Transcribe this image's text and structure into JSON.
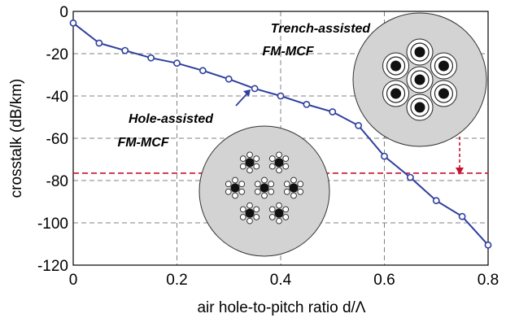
{
  "chart_data": {
    "type": "line",
    "xlabel": "air hole-to-pitch ratio d/Λ",
    "ylabel": "crosstalk (dB/km)",
    "xlim": [
      0,
      0.8
    ],
    "ylim": [
      -120,
      0
    ],
    "xticks": [
      0,
      0.2,
      0.4,
      0.6,
      0.8
    ],
    "xtick_labels": [
      "0",
      "0.2",
      "0.4",
      "0.6",
      "0.8"
    ],
    "yticks": [
      0,
      -20,
      -40,
      -60,
      -80,
      -100,
      -120
    ],
    "ytick_labels": [
      "0",
      "-20",
      "-40",
      "-60",
      "-80",
      "-100",
      "-120"
    ],
    "grid": true,
    "series": [
      {
        "color": "#2f3f9e",
        "marker": "circle",
        "x": [
          0,
          0.05,
          0.1,
          0.15,
          0.2,
          0.25,
          0.3,
          0.35,
          0.4,
          0.45,
          0.5,
          0.55,
          0.6,
          0.65,
          0.7,
          0.75,
          0.8
        ],
        "y": [
          -5.5,
          -15,
          -18.5,
          -22,
          -24.5,
          -28,
          -32,
          -36.5,
          -40,
          -44,
          -47.5,
          -54,
          -68.5,
          -78.5,
          -89.5,
          -97,
          -110.5
        ]
      }
    ],
    "reference_line": {
      "y": -76.5,
      "color": "#c8102e",
      "style": "dashed"
    },
    "annotations": [
      {
        "text_line1": "Trench-assisted",
        "text_line2": "FM-MCF",
        "color": "#c8102e"
      },
      {
        "text_line1": "Hole-assisted",
        "text_line2": "FM-MCF",
        "color": "#2f3f9e"
      }
    ],
    "colors": {
      "grid": "#808080",
      "inset_fill": "#d3d3d3",
      "core": "#111111"
    }
  }
}
